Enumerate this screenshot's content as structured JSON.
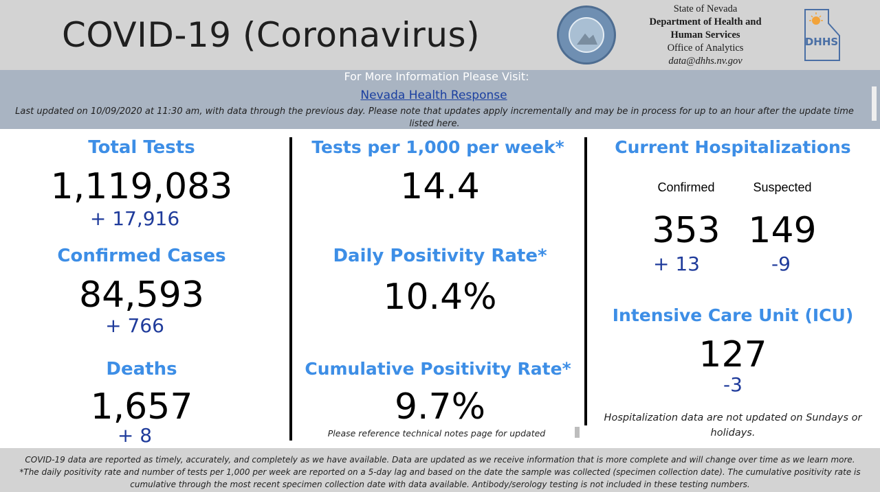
{
  "header": {
    "title": "COVID-19 (Coronavirus)",
    "dept": {
      "state": "State of Nevada",
      "line1": "Department of Health and",
      "line2": "Human Services",
      "office": "Office of Analytics",
      "email": "data@dhhs.nv.gov"
    },
    "logo_text": "DHHS"
  },
  "info": {
    "title": "For More Information Please Visit:",
    "link": "Nevada Health Response",
    "updated": "Last updated on 10/09/2020 at 11:30 am, with data through the previous day.  Please note that updates apply incrementally and may be in process for up to an hour after the update time listed here."
  },
  "left": {
    "total_tests": {
      "label": "Total Tests",
      "value": "1,119,083",
      "delta": "+ 17,916"
    },
    "confirmed_cases": {
      "label": "Confirmed Cases",
      "value": "84,593",
      "delta": "+ 766"
    },
    "deaths": {
      "label": "Deaths",
      "value": "1,657",
      "delta": "+ 8"
    }
  },
  "middle": {
    "tests_per_1000": {
      "label": "Tests per 1,000 per week*",
      "value": "14.4"
    },
    "daily_positivity": {
      "label": "Daily Positivity Rate*",
      "value": "10.4%"
    },
    "cumulative_positivity": {
      "label": "Cumulative Positivity Rate*",
      "value": "9.7%",
      "note": "Please reference technical notes page for updated"
    }
  },
  "right": {
    "hospitalizations": {
      "label": "Current Hospitalizations",
      "confirmed_label": "Confirmed",
      "suspected_label": "Suspected",
      "confirmed_value": "353",
      "suspected_value": "149",
      "confirmed_delta": "+ 13",
      "suspected_delta": "-9"
    },
    "icu": {
      "label": "Intensive Care Unit (ICU)",
      "value": "127",
      "delta": "-3"
    },
    "note": "Hospitalization data are not updated on Sundays or holidays."
  },
  "footer": {
    "line1": "COVID-19 data are reported as timely, accurately, and completely as we have available.  Data are updated as we receive information that is more complete and will change over time as we learn more.",
    "line2": "*The daily positivity rate and number of tests per 1,000 per week are reported on a 5-day lag and based on the date the sample was collected (specimen collection date).  The cumulative positivity rate is cumulative through the most recent specimen collection date with data available.  Antibody/serology testing is not included in these testing numbers."
  },
  "colors": {
    "heading": "#3d8ee6",
    "delta": "#1f3b9b",
    "header_bg": "#d3d3d3",
    "info_bg": "#a9b4c2"
  }
}
